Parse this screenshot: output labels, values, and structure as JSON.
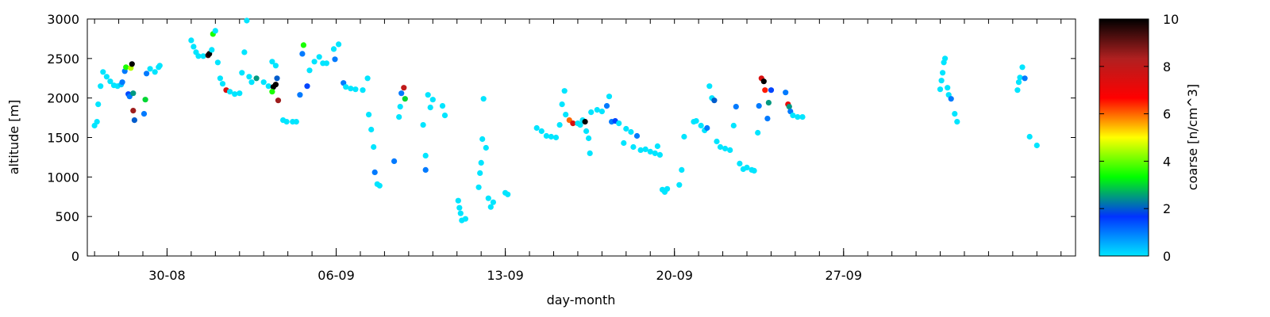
{
  "chart_data": {
    "type": "scatter",
    "xlabel": "day-month",
    "ylabel": "altitude [m]",
    "colorbar_label": "coarse [n/cm^3]",
    "xlim": [
      -3.3,
      37.6
    ],
    "ylim": [
      0,
      3000
    ],
    "x_tick_labels": [
      {
        "x": 0,
        "label": "30-08"
      },
      {
        "x": 7,
        "label": "06-09"
      },
      {
        "x": 14,
        "label": "13-09"
      },
      {
        "x": 21,
        "label": "20-09"
      },
      {
        "x": 28,
        "label": "27-09"
      }
    ],
    "y_ticks": [
      0,
      500,
      1000,
      1500,
      2000,
      2500,
      3000
    ],
    "colorbar_ticks": [
      0,
      2,
      4,
      6,
      8,
      10
    ],
    "color_range": [
      0,
      10
    ],
    "grid": false,
    "colormap": [
      "#00e5ff",
      "#0033ff",
      "#00ff00",
      "#ffff00",
      "#ff0000",
      "#b02020",
      "#000000"
    ],
    "points": [
      [
        -3.0,
        1650,
        0
      ],
      [
        -2.9,
        1700,
        0
      ],
      [
        -2.85,
        1920,
        0
      ],
      [
        -2.75,
        2150,
        0
      ],
      [
        -2.65,
        2330,
        0
      ],
      [
        -2.5,
        2270,
        0
      ],
      [
        -2.35,
        2210,
        0
      ],
      [
        -2.2,
        2160,
        0
      ],
      [
        -2.05,
        2150,
        0
      ],
      [
        -1.9,
        2170,
        0.3
      ],
      [
        -1.85,
        2200,
        1.0
      ],
      [
        -1.75,
        2340,
        1.0
      ],
      [
        -1.7,
        2390,
        3.5
      ],
      [
        -1.6,
        2050,
        1.5
      ],
      [
        -1.55,
        2020,
        1.0
      ],
      [
        -1.5,
        2380,
        4.5
      ],
      [
        -1.45,
        2430,
        10
      ],
      [
        -1.4,
        2060,
        2.5
      ],
      [
        -1.4,
        1840,
        8.5
      ],
      [
        -1.35,
        1720,
        2.0
      ],
      [
        -0.9,
        1980,
        3.0
      ],
      [
        -0.95,
        1800,
        1.0
      ],
      [
        -0.85,
        2310,
        1.0
      ],
      [
        -0.7,
        2370,
        0
      ],
      [
        -0.5,
        2330,
        0
      ],
      [
        -0.35,
        2390,
        0
      ],
      [
        -0.3,
        2410,
        0
      ],
      [
        1.0,
        2730,
        0
      ],
      [
        1.1,
        2650,
        0
      ],
      [
        1.2,
        2580,
        0
      ],
      [
        1.3,
        2530,
        0
      ],
      [
        1.5,
        2530,
        0
      ],
      [
        1.7,
        2540,
        9.5
      ],
      [
        1.75,
        2560,
        10
      ],
      [
        1.85,
        2610,
        0
      ],
      [
        1.9,
        2810,
        3.5
      ],
      [
        2.0,
        2850,
        0
      ],
      [
        2.1,
        2450,
        0
      ],
      [
        2.2,
        2250,
        0
      ],
      [
        2.3,
        2180,
        0
      ],
      [
        2.45,
        2100,
        7.5
      ],
      [
        2.6,
        2080,
        0
      ],
      [
        2.8,
        2050,
        0
      ],
      [
        3.0,
        2060,
        0
      ],
      [
        3.1,
        2320,
        0
      ],
      [
        3.2,
        2580,
        0
      ],
      [
        3.3,
        2980,
        0
      ],
      [
        3.4,
        2270,
        0
      ],
      [
        3.5,
        2200,
        0
      ],
      [
        3.7,
        2250,
        2.5
      ],
      [
        4.0,
        2200,
        0
      ],
      [
        4.2,
        2150,
        0
      ],
      [
        4.4,
        2140,
        10
      ],
      [
        4.5,
        2170,
        10
      ],
      [
        4.35,
        2460,
        0
      ],
      [
        4.5,
        2410,
        0
      ],
      [
        4.35,
        2080,
        3.5
      ],
      [
        4.55,
        2250,
        2.0
      ],
      [
        4.6,
        1970,
        8.5
      ],
      [
        4.8,
        1720,
        0
      ],
      [
        4.95,
        1700,
        0
      ],
      [
        5.2,
        1700,
        0
      ],
      [
        5.35,
        1700,
        0
      ],
      [
        5.5,
        2040,
        1.0
      ],
      [
        5.6,
        2560,
        1.0
      ],
      [
        5.65,
        2670,
        3.5
      ],
      [
        5.8,
        2150,
        1.5
      ],
      [
        5.9,
        2350,
        0
      ],
      [
        6.1,
        2460,
        0
      ],
      [
        6.3,
        2520,
        0
      ],
      [
        6.45,
        2440,
        0
      ],
      [
        6.6,
        2440,
        0
      ],
      [
        6.9,
        2620,
        0
      ],
      [
        6.95,
        2490,
        1.0
      ],
      [
        7.1,
        2680,
        0
      ],
      [
        7.3,
        2190,
        1.0
      ],
      [
        7.4,
        2140,
        0
      ],
      [
        7.6,
        2120,
        0
      ],
      [
        7.8,
        2110,
        0
      ],
      [
        8.1,
        2100,
        0
      ],
      [
        8.3,
        2250,
        0
      ],
      [
        8.35,
        1790,
        0
      ],
      [
        8.45,
        1600,
        0
      ],
      [
        8.55,
        1380,
        0
      ],
      [
        8.6,
        1060,
        1.0
      ],
      [
        8.7,
        910,
        0
      ],
      [
        8.8,
        890,
        0
      ],
      [
        9.4,
        1200,
        1.0
      ],
      [
        9.6,
        1760,
        0
      ],
      [
        9.65,
        1890,
        0
      ],
      [
        9.7,
        2060,
        1.0
      ],
      [
        9.8,
        2130,
        8.0
      ],
      [
        9.85,
        1990,
        3.0
      ],
      [
        10.6,
        1660,
        0
      ],
      [
        10.7,
        1270,
        0
      ],
      [
        10.7,
        1090,
        1.0
      ],
      [
        10.8,
        2040,
        0
      ],
      [
        10.9,
        1880,
        0
      ],
      [
        11.0,
        1980,
        0
      ],
      [
        11.4,
        1900,
        0
      ],
      [
        11.5,
        1780,
        0
      ],
      [
        12.05,
        700,
        0
      ],
      [
        12.1,
        610,
        0
      ],
      [
        12.15,
        540,
        0
      ],
      [
        12.2,
        450,
        0
      ],
      [
        12.35,
        470,
        0
      ],
      [
        12.9,
        870,
        0
      ],
      [
        12.95,
        1050,
        0
      ],
      [
        13.0,
        1180,
        0
      ],
      [
        13.05,
        1480,
        0
      ],
      [
        13.1,
        1990,
        0
      ],
      [
        13.2,
        1370,
        0
      ],
      [
        13.3,
        730,
        0
      ],
      [
        13.4,
        620,
        0
      ],
      [
        13.5,
        680,
        0
      ],
      [
        14.0,
        800,
        0
      ],
      [
        14.1,
        780,
        0
      ],
      [
        15.3,
        1620,
        0
      ],
      [
        15.5,
        1580,
        0
      ],
      [
        15.7,
        1520,
        0
      ],
      [
        15.9,
        1510,
        0
      ],
      [
        16.1,
        1500,
        0
      ],
      [
        16.25,
        1660,
        0
      ],
      [
        16.35,
        1920,
        0
      ],
      [
        16.45,
        2090,
        0
      ],
      [
        16.5,
        1790,
        0
      ],
      [
        16.65,
        1720,
        6.0
      ],
      [
        16.8,
        1680,
        7.5
      ],
      [
        17.0,
        1680,
        0
      ],
      [
        17.1,
        1660,
        0
      ],
      [
        17.2,
        1720,
        0
      ],
      [
        17.35,
        1580,
        0
      ],
      [
        17.45,
        1490,
        0
      ],
      [
        17.5,
        1300,
        0
      ],
      [
        17.3,
        1700,
        10
      ],
      [
        17.55,
        1820,
        0
      ],
      [
        17.8,
        1850,
        0
      ],
      [
        18.0,
        1830,
        0
      ],
      [
        18.2,
        1900,
        1.0
      ],
      [
        18.3,
        2020,
        0
      ],
      [
        18.4,
        1700,
        1.0
      ],
      [
        18.55,
        1710,
        1.5
      ],
      [
        18.7,
        1680,
        0
      ],
      [
        18.9,
        1430,
        0
      ],
      [
        19.0,
        1610,
        0
      ],
      [
        19.2,
        1570,
        0
      ],
      [
        19.3,
        1380,
        0
      ],
      [
        19.45,
        1520,
        1.0
      ],
      [
        19.6,
        1340,
        0
      ],
      [
        19.8,
        1350,
        0
      ],
      [
        20.0,
        1320,
        0
      ],
      [
        20.2,
        1300,
        0
      ],
      [
        20.3,
        1390,
        0
      ],
      [
        20.4,
        1280,
        0
      ],
      [
        20.5,
        840,
        0
      ],
      [
        20.6,
        810,
        0
      ],
      [
        20.7,
        850,
        0
      ],
      [
        21.2,
        900,
        0
      ],
      [
        21.3,
        1090,
        0
      ],
      [
        21.4,
        1510,
        0
      ],
      [
        21.8,
        1700,
        0
      ],
      [
        21.9,
        1710,
        0
      ],
      [
        22.1,
        1650,
        0
      ],
      [
        22.25,
        1590,
        0
      ],
      [
        22.35,
        1620,
        1.0
      ],
      [
        22.45,
        2150,
        0
      ],
      [
        22.55,
        2000,
        0
      ],
      [
        22.65,
        1970,
        2.0
      ],
      [
        22.75,
        1450,
        0
      ],
      [
        22.9,
        1380,
        0
      ],
      [
        23.1,
        1360,
        0
      ],
      [
        23.3,
        1340,
        0
      ],
      [
        23.45,
        1650,
        0
      ],
      [
        23.55,
        1890,
        1.0
      ],
      [
        23.7,
        1170,
        0
      ],
      [
        23.85,
        1100,
        0
      ],
      [
        24.0,
        1120,
        0
      ],
      [
        24.2,
        1090,
        0
      ],
      [
        24.3,
        1080,
        0
      ],
      [
        24.45,
        1560,
        0
      ],
      [
        24.5,
        1900,
        1.0
      ],
      [
        24.6,
        2250,
        7.5
      ],
      [
        24.7,
        2210,
        10
      ],
      [
        24.75,
        2100,
        6.5
      ],
      [
        24.85,
        1740,
        1.0
      ],
      [
        24.9,
        1940,
        2.5
      ],
      [
        25.0,
        2100,
        1.5
      ],
      [
        25.6,
        2070,
        1.0
      ],
      [
        25.7,
        1920,
        7.0
      ],
      [
        25.75,
        1890,
        2.5
      ],
      [
        25.8,
        1830,
        1.0
      ],
      [
        25.9,
        1780,
        0
      ],
      [
        26.1,
        1760,
        0
      ],
      [
        26.3,
        1760,
        0
      ],
      [
        32.0,
        2110,
        0
      ],
      [
        32.05,
        2220,
        0
      ],
      [
        32.1,
        2320,
        0
      ],
      [
        32.15,
        2450,
        0
      ],
      [
        32.2,
        2500,
        0
      ],
      [
        32.3,
        2130,
        0
      ],
      [
        32.35,
        2040,
        0
      ],
      [
        32.45,
        1990,
        1.0
      ],
      [
        32.6,
        1800,
        0
      ],
      [
        32.7,
        1700,
        0
      ],
      [
        35.2,
        2100,
        0
      ],
      [
        35.25,
        2200,
        0
      ],
      [
        35.3,
        2260,
        0
      ],
      [
        35.4,
        2390,
        0
      ],
      [
        35.5,
        2250,
        1.0
      ],
      [
        35.7,
        1510,
        0
      ],
      [
        36.0,
        1400,
        0
      ]
    ]
  }
}
